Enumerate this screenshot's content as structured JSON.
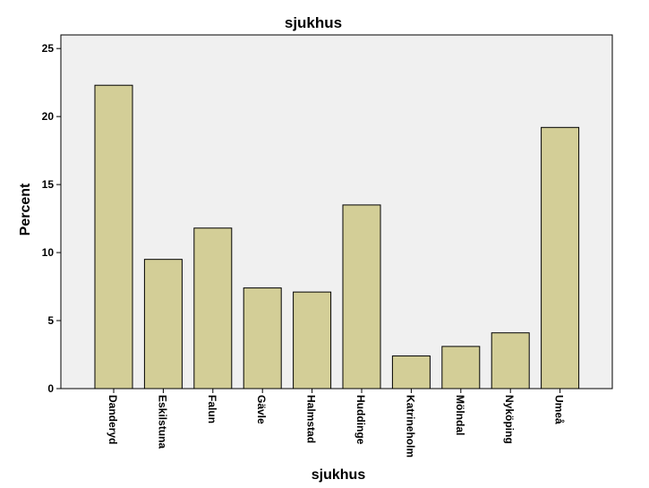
{
  "chart_data": {
    "type": "bar",
    "title": "sjukhus",
    "xlabel": "sjukhus",
    "ylabel": "Percent",
    "categories": [
      "Danderyd",
      "Eskilstuna",
      "Falun",
      "Gävle",
      "Halmstad",
      "Huddinge",
      "Katrineholm",
      "Mölndal",
      "Nyköping",
      "Umeå"
    ],
    "values": [
      22.3,
      9.5,
      11.8,
      7.4,
      7.1,
      13.5,
      2.4,
      3.1,
      4.1,
      19.2
    ],
    "ylim": [
      0,
      26
    ],
    "yticks": [
      0,
      5,
      10,
      15,
      20,
      25
    ],
    "grid": false,
    "legend": "none",
    "colors": {
      "bar": "#d3ce97",
      "plot_background": "#f0f0f0",
      "outline": "#000000"
    }
  }
}
